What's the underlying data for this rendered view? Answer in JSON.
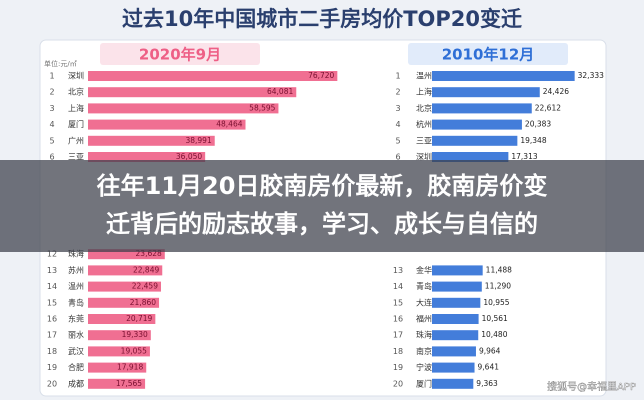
{
  "title": "过去10年中国城市二手房均价TOP20变迁",
  "unit_label": "单位:元/㎡",
  "overlay": {
    "lines": [
      "往年11月20日胶南房价最新，胶南房价变",
      "迁背后的励志故事，学习、成长与自信的"
    ]
  },
  "watermark": "搜狐号@幸福里APP",
  "chart_data": [
    {
      "type": "bar",
      "orientation": "horizontal",
      "title": "2020年9月",
      "color": "#ee5f86",
      "xlim": [
        0,
        80000
      ],
      "ranks": [
        1,
        2,
        3,
        4,
        5,
        6,
        12,
        13,
        14,
        15,
        16,
        17,
        18,
        19,
        20
      ],
      "categories": [
        "深圳",
        "北京",
        "上海",
        "厦门",
        "广州",
        "三亚",
        "珠海",
        "苏州",
        "温州",
        "青岛",
        "东莞",
        "丽水",
        "武汉",
        "合肥",
        "成都"
      ],
      "values": [
        76720,
        64081,
        58595,
        48464,
        38991,
        36050,
        23628,
        22849,
        22459,
        21860,
        20719,
        19330,
        19055,
        17918,
        17565
      ],
      "value_labels": [
        "76,720",
        "64,081",
        "58,595",
        "48,464",
        "38,991",
        "36,050",
        "23,628",
        "22,849",
        "22,459",
        "21,860",
        "20,719",
        "19,330",
        "19,055",
        "17,918",
        "17,565"
      ]
    },
    {
      "type": "bar",
      "orientation": "horizontal",
      "title": "2010年12月",
      "color": "#2f6fd6",
      "xlim": [
        0,
        34000
      ],
      "ranks": [
        1,
        2,
        3,
        4,
        5,
        6,
        13,
        14,
        15,
        16,
        17,
        18,
        19,
        20
      ],
      "categories": [
        "温州",
        "上海",
        "北京",
        "杭州",
        "三亚",
        "深圳",
        "金华",
        "青岛",
        "大连",
        "福州",
        "珠海",
        "南京",
        "宁波",
        "厦门"
      ],
      "values": [
        32333,
        24426,
        22612,
        20383,
        19348,
        17313,
        11488,
        11290,
        10955,
        10561,
        10480,
        9964,
        9641,
        9363
      ],
      "value_labels": [
        "32,333",
        "24,426",
        "22,612",
        "20,383",
        "19,348",
        "17,313",
        "11,488",
        "11,290",
        "10,955",
        "10,561",
        "10,480",
        "9,964",
        "9,641",
        "9,363"
      ]
    }
  ]
}
